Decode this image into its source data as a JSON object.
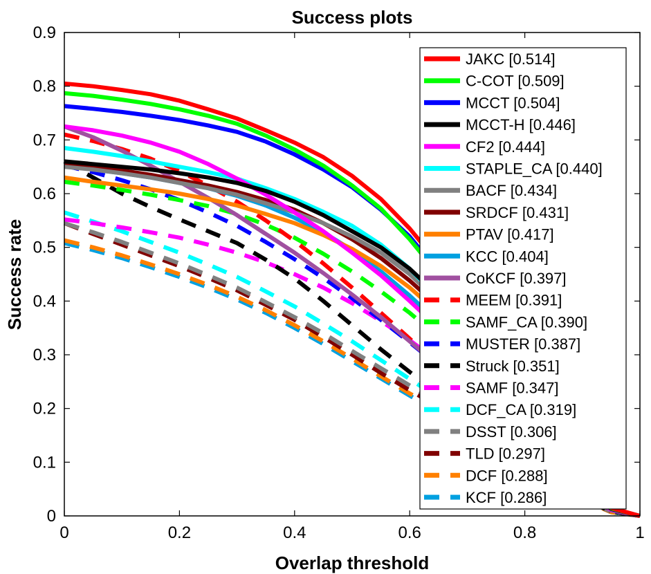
{
  "chart_data": {
    "type": "line",
    "title": "Success plots",
    "xlabel": "Overlap threshold",
    "ylabel": "Success rate",
    "xlim": [
      0,
      1
    ],
    "ylim": [
      0,
      0.9
    ],
    "xticks": [
      "0",
      "0.2",
      "0.4",
      "0.6",
      "0.8",
      "1"
    ],
    "yticks": [
      "0",
      "0.1",
      "0.2",
      "0.3",
      "0.4",
      "0.5",
      "0.6",
      "0.7",
      "0.8",
      "0.9"
    ],
    "grid": false,
    "legend_position": "top-right",
    "x": [
      0,
      0.05,
      0.1,
      0.15,
      0.2,
      0.25,
      0.3,
      0.35,
      0.4,
      0.45,
      0.5,
      0.55,
      0.6,
      0.65,
      0.7,
      0.75,
      0.8,
      0.85,
      0.9,
      0.95,
      1.0
    ],
    "series": [
      {
        "name": "JAKC [0.514]",
        "color": "#ff0000",
        "dashed": false,
        "values": [
          0.805,
          0.8,
          0.793,
          0.785,
          0.773,
          0.757,
          0.74,
          0.718,
          0.695,
          0.668,
          0.633,
          0.59,
          0.535,
          0.47,
          0.395,
          0.31,
          0.22,
          0.135,
          0.06,
          0.015,
          0.0
        ]
      },
      {
        "name": "C-COT [0.509]",
        "color": "#00ff00",
        "dashed": false,
        "values": [
          0.787,
          0.782,
          0.775,
          0.767,
          0.757,
          0.745,
          0.73,
          0.708,
          0.682,
          0.652,
          0.615,
          0.572,
          0.515,
          0.45,
          0.378,
          0.3,
          0.215,
          0.132,
          0.058,
          0.014,
          0.0
        ]
      },
      {
        "name": "MCCT [0.504]",
        "color": "#0000ff",
        "dashed": false,
        "values": [
          0.763,
          0.758,
          0.752,
          0.745,
          0.737,
          0.727,
          0.715,
          0.697,
          0.673,
          0.645,
          0.612,
          0.57,
          0.52,
          0.455,
          0.382,
          0.302,
          0.217,
          0.133,
          0.058,
          0.014,
          0.0
        ]
      },
      {
        "name": "MCCT-H [0.446]",
        "color": "#000000",
        "dashed": false,
        "values": [
          0.66,
          0.655,
          0.65,
          0.645,
          0.638,
          0.63,
          0.62,
          0.605,
          0.585,
          0.56,
          0.53,
          0.5,
          0.46,
          0.41,
          0.35,
          0.28,
          0.205,
          0.125,
          0.055,
          0.013,
          0.0
        ]
      },
      {
        "name": "CF2 [0.444]",
        "color": "#ff00ff",
        "dashed": false,
        "values": [
          0.725,
          0.718,
          0.708,
          0.695,
          0.678,
          0.655,
          0.628,
          0.598,
          0.565,
          0.53,
          0.49,
          0.448,
          0.4,
          0.35,
          0.295,
          0.235,
          0.17,
          0.105,
          0.048,
          0.012,
          0.0
        ]
      },
      {
        "name": "STAPLE_CA [0.440]",
        "color": "#00ffff",
        "dashed": false,
        "values": [
          0.685,
          0.678,
          0.67,
          0.66,
          0.65,
          0.64,
          0.628,
          0.61,
          0.59,
          0.566,
          0.54,
          0.505,
          0.46,
          0.405,
          0.345,
          0.275,
          0.2,
          0.122,
          0.054,
          0.013,
          0.0
        ]
      },
      {
        "name": "BACF [0.434]",
        "color": "#808080",
        "dashed": false,
        "values": [
          0.65,
          0.645,
          0.638,
          0.63,
          0.62,
          0.61,
          0.598,
          0.582,
          0.565,
          0.545,
          0.52,
          0.49,
          0.45,
          0.4,
          0.34,
          0.272,
          0.198,
          0.121,
          0.053,
          0.013,
          0.0
        ]
      },
      {
        "name": "SRDCF [0.431]",
        "color": "#800000",
        "dashed": false,
        "values": [
          0.655,
          0.65,
          0.643,
          0.635,
          0.625,
          0.615,
          0.603,
          0.588,
          0.57,
          0.545,
          0.515,
          0.48,
          0.438,
          0.39,
          0.335,
          0.27,
          0.198,
          0.121,
          0.053,
          0.013,
          0.0
        ]
      },
      {
        "name": "PTAV [0.417]",
        "color": "#ff8000",
        "dashed": false,
        "values": [
          0.63,
          0.622,
          0.615,
          0.608,
          0.6,
          0.59,
          0.578,
          0.562,
          0.545,
          0.523,
          0.497,
          0.465,
          0.425,
          0.378,
          0.325,
          0.262,
          0.192,
          0.118,
          0.052,
          0.013,
          0.0
        ]
      },
      {
        "name": "KCC [0.404]",
        "color": "#00a0e0",
        "dashed": false,
        "values": [
          0.652,
          0.645,
          0.638,
          0.63,
          0.62,
          0.61,
          0.596,
          0.578,
          0.555,
          0.528,
          0.495,
          0.455,
          0.41,
          0.36,
          0.305,
          0.245,
          0.18,
          0.11,
          0.048,
          0.012,
          0.0
        ]
      },
      {
        "name": "CoKCF [0.397]",
        "color": "#a050a0",
        "dashed": false,
        "values": [
          0.725,
          0.705,
          0.68,
          0.652,
          0.622,
          0.592,
          0.56,
          0.525,
          0.49,
          0.452,
          0.412,
          0.37,
          0.325,
          0.28,
          0.235,
          0.188,
          0.14,
          0.088,
          0.04,
          0.01,
          0.0
        ]
      },
      {
        "name": "MEEM [0.391]",
        "color": "#ff0000",
        "dashed": true,
        "values": [
          0.71,
          0.698,
          0.683,
          0.665,
          0.642,
          0.615,
          0.585,
          0.55,
          0.512,
          0.47,
          0.425,
          0.378,
          0.33,
          0.283,
          0.237,
          0.19,
          0.142,
          0.09,
          0.041,
          0.01,
          0.0
        ]
      },
      {
        "name": "SAMF_CA [0.390]",
        "color": "#00ff00",
        "dashed": true,
        "values": [
          0.622,
          0.615,
          0.607,
          0.598,
          0.588,
          0.577,
          0.562,
          0.542,
          0.518,
          0.488,
          0.455,
          0.418,
          0.378,
          0.333,
          0.285,
          0.232,
          0.172,
          0.106,
          0.047,
          0.012,
          0.0
        ]
      },
      {
        "name": "MUSTER [0.387]",
        "color": "#0000ff",
        "dashed": true,
        "values": [
          0.652,
          0.64,
          0.625,
          0.608,
          0.588,
          0.565,
          0.54,
          0.51,
          0.478,
          0.443,
          0.405,
          0.365,
          0.323,
          0.28,
          0.237,
          0.192,
          0.145,
          0.092,
          0.042,
          0.011,
          0.0
        ]
      },
      {
        "name": "Struck [0.351]",
        "color": "#000000",
        "dashed": true,
        "values": [
          0.66,
          0.63,
          0.6,
          0.575,
          0.552,
          0.53,
          0.508,
          0.477,
          0.442,
          0.4,
          0.355,
          0.31,
          0.268,
          0.228,
          0.19,
          0.152,
          0.113,
          0.072,
          0.033,
          0.008,
          0.0
        ]
      },
      {
        "name": "SAMF [0.347]",
        "color": "#ff00ff",
        "dashed": true,
        "values": [
          0.552,
          0.545,
          0.537,
          0.528,
          0.518,
          0.505,
          0.49,
          0.472,
          0.45,
          0.425,
          0.396,
          0.363,
          0.327,
          0.287,
          0.245,
          0.2,
          0.152,
          0.097,
          0.044,
          0.011,
          0.0
        ]
      },
      {
        "name": "DCF_CA [0.319]",
        "color": "#00ffff",
        "dashed": true,
        "values": [
          0.565,
          0.548,
          0.53,
          0.51,
          0.49,
          0.468,
          0.445,
          0.418,
          0.39,
          0.358,
          0.325,
          0.29,
          0.255,
          0.22,
          0.185,
          0.15,
          0.113,
          0.072,
          0.033,
          0.008,
          0.0
        ]
      },
      {
        "name": "DSST [0.306]",
        "color": "#808080",
        "dashed": true,
        "values": [
          0.545,
          0.528,
          0.51,
          0.49,
          0.47,
          0.448,
          0.425,
          0.398,
          0.37,
          0.34,
          0.307,
          0.275,
          0.243,
          0.21,
          0.177,
          0.143,
          0.108,
          0.069,
          0.032,
          0.008,
          0.0
        ]
      },
      {
        "name": "TLD [0.297]",
        "color": "#800000",
        "dashed": true,
        "values": [
          0.545,
          0.525,
          0.505,
          0.485,
          0.465,
          0.443,
          0.42,
          0.393,
          0.365,
          0.333,
          0.3,
          0.266,
          0.234,
          0.203,
          0.172,
          0.14,
          0.106,
          0.068,
          0.031,
          0.008,
          0.0
        ]
      },
      {
        "name": "DCF [0.288]",
        "color": "#ff8000",
        "dashed": true,
        "values": [
          0.513,
          0.5,
          0.485,
          0.468,
          0.45,
          0.43,
          0.408,
          0.383,
          0.355,
          0.325,
          0.293,
          0.26,
          0.228,
          0.196,
          0.165,
          0.134,
          0.102,
          0.065,
          0.03,
          0.007,
          0.0
        ]
      },
      {
        "name": "KCF [0.286]",
        "color": "#00a0e0",
        "dashed": true,
        "values": [
          0.508,
          0.495,
          0.48,
          0.463,
          0.445,
          0.425,
          0.403,
          0.378,
          0.35,
          0.32,
          0.288,
          0.256,
          0.224,
          0.193,
          0.163,
          0.132,
          0.1,
          0.064,
          0.03,
          0.007,
          0.0
        ]
      }
    ]
  }
}
